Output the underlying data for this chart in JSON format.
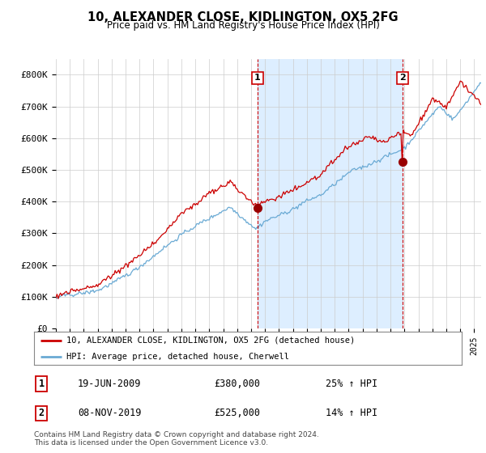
{
  "title": "10, ALEXANDER CLOSE, KIDLINGTON, OX5 2FG",
  "subtitle": "Price paid vs. HM Land Registry's House Price Index (HPI)",
  "ylim": [
    0,
    850000
  ],
  "yticks": [
    0,
    100000,
    200000,
    300000,
    400000,
    500000,
    600000,
    700000,
    800000
  ],
  "ytick_labels": [
    "£0",
    "£100K",
    "£200K",
    "£300K",
    "£400K",
    "£500K",
    "£600K",
    "£700K",
    "£800K"
  ],
  "hpi_color": "#6aaad4",
  "sale_color": "#CC0000",
  "marker_color": "#990000",
  "shade_color": "#ddeeff",
  "background_color": "#FFFFFF",
  "grid_color": "#CCCCCC",
  "legend_entry1": "10, ALEXANDER CLOSE, KIDLINGTON, OX5 2FG (detached house)",
  "legend_entry2": "HPI: Average price, detached house, Cherwell",
  "sale1_date": "19-JUN-2009",
  "sale1_price": "£380,000",
  "sale1_hpi": "25% ↑ HPI",
  "sale2_date": "08-NOV-2019",
  "sale2_price": "£525,000",
  "sale2_hpi": "14% ↑ HPI",
  "footer": "Contains HM Land Registry data © Crown copyright and database right 2024.\nThis data is licensed under the Open Government Licence v3.0.",
  "xlim_start": 1995,
  "xlim_end": 2025.5
}
